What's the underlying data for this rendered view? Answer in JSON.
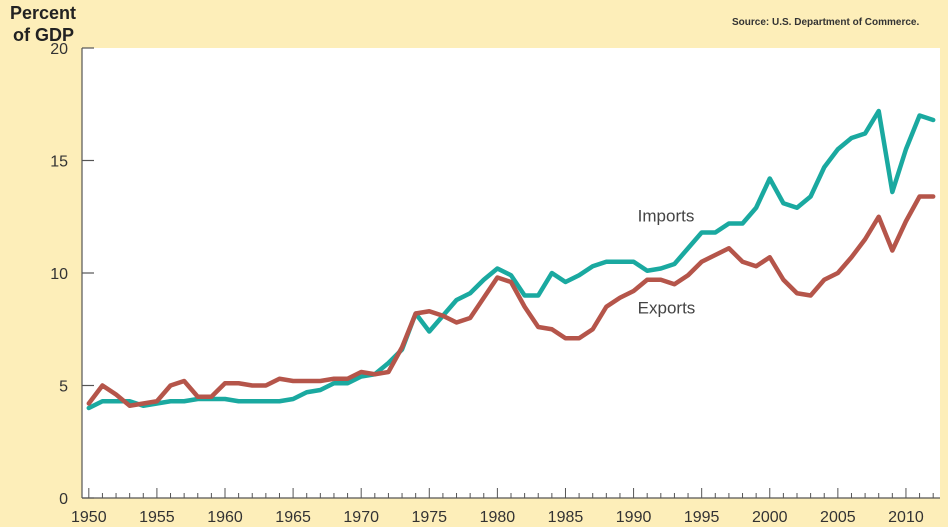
{
  "chart_data": {
    "type": "line",
    "ylabel": "Percent of GDP",
    "ylabel_lines": [
      "Percent",
      "of GDP"
    ],
    "source": "Source: U.S. Department of Commerce.",
    "source_label": "Source:",
    "source_text": "U.S. Department of Commerce.",
    "xlim": [
      1949.5,
      2012.5
    ],
    "ylim": [
      0,
      20
    ],
    "xticks": [
      1950,
      1955,
      1960,
      1965,
      1970,
      1975,
      1980,
      1985,
      1990,
      1995,
      2000,
      2005,
      2010
    ],
    "yticks": [
      0,
      5,
      10,
      15,
      20
    ],
    "grid": false,
    "background": "#fdeeb9",
    "plot_background": "#ffffff",
    "x": [
      1950,
      1951,
      1952,
      1953,
      1954,
      1955,
      1956,
      1957,
      1958,
      1959,
      1960,
      1961,
      1962,
      1963,
      1964,
      1965,
      1966,
      1967,
      1968,
      1969,
      1970,
      1971,
      1972,
      1973,
      1974,
      1975,
      1976,
      1977,
      1978,
      1979,
      1980,
      1981,
      1982,
      1983,
      1984,
      1985,
      1986,
      1987,
      1988,
      1989,
      1990,
      1991,
      1992,
      1993,
      1994,
      1995,
      1996,
      1997,
      1998,
      1999,
      2000,
      2001,
      2002,
      2003,
      2004,
      2005,
      2006,
      2007,
      2008,
      2009,
      2010,
      2011,
      2012
    ],
    "series": [
      {
        "name": "Imports",
        "color": "#1aa9a0",
        "values": [
          4.0,
          4.3,
          4.3,
          4.3,
          4.1,
          4.2,
          4.3,
          4.3,
          4.4,
          4.4,
          4.4,
          4.3,
          4.3,
          4.3,
          4.3,
          4.4,
          4.7,
          4.8,
          5.1,
          5.1,
          5.4,
          5.5,
          6.0,
          6.6,
          8.2,
          7.4,
          8.1,
          8.8,
          9.1,
          9.7,
          10.2,
          9.9,
          9.0,
          9.0,
          10.0,
          9.6,
          9.9,
          10.3,
          10.5,
          10.5,
          10.5,
          10.1,
          10.2,
          10.4,
          11.1,
          11.8,
          11.8,
          12.2,
          12.2,
          12.9,
          14.2,
          13.1,
          12.9,
          13.4,
          14.7,
          15.5,
          16.0,
          16.2,
          17.2,
          13.6,
          15.5,
          17.0,
          16.8
        ]
      },
      {
        "name": "Exports",
        "color": "#b5554a",
        "values": [
          4.2,
          5.0,
          4.6,
          4.1,
          4.2,
          4.3,
          5.0,
          5.2,
          4.5,
          4.5,
          5.1,
          5.1,
          5.0,
          5.0,
          5.3,
          5.2,
          5.2,
          5.2,
          5.3,
          5.3,
          5.6,
          5.5,
          5.6,
          6.7,
          8.2,
          8.3,
          8.1,
          7.8,
          8.0,
          8.9,
          9.8,
          9.6,
          8.5,
          7.6,
          7.5,
          7.1,
          7.1,
          7.5,
          8.5,
          8.9,
          9.2,
          9.7,
          9.7,
          9.5,
          9.9,
          10.5,
          10.8,
          11.1,
          10.5,
          10.3,
          10.7,
          9.7,
          9.1,
          9.0,
          9.7,
          10.0,
          10.7,
          11.5,
          12.5,
          11.0,
          12.3,
          13.4,
          13.4
        ]
      }
    ],
    "annotations": [
      {
        "text": "Imports",
        "x": 1990.3,
        "y": 12.3
      },
      {
        "text": "Exports",
        "x": 1990.3,
        "y": 8.2
      }
    ]
  }
}
